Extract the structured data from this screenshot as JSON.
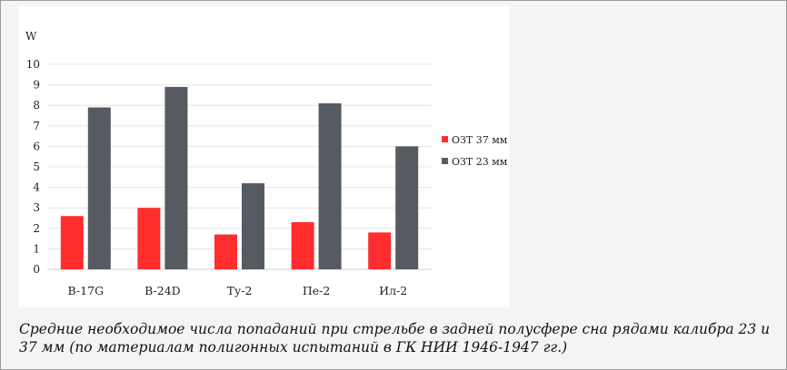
{
  "caption": "Средние необходимое числа попаданий при стрельбе в задней полусфере сна рядами калибра 23 и 37 мм (по материалам полигонных испытаний в ГК НИИ 1946-1947 гг.)",
  "chart_data": {
    "type": "bar",
    "title": "",
    "xlabel": "",
    "ylabel": "W",
    "categories": [
      "B-17G",
      "B-24D",
      "Ту-2",
      "Пе-2",
      "Ил-2"
    ],
    "ylim": [
      0,
      10
    ],
    "yticks": [
      0,
      1,
      2,
      3,
      4,
      5,
      6,
      7,
      8,
      9,
      10
    ],
    "grid": true,
    "legend_position": "right",
    "series": [
      {
        "name": "ОЗТ 37 мм",
        "color": "#ff2d2d",
        "values": [
          2.6,
          3.0,
          1.7,
          2.3,
          1.8
        ]
      },
      {
        "name": "ОЗТ 23 мм",
        "color": "#555b61",
        "values": [
          7.9,
          8.9,
          4.2,
          8.1,
          6.0
        ]
      }
    ]
  }
}
